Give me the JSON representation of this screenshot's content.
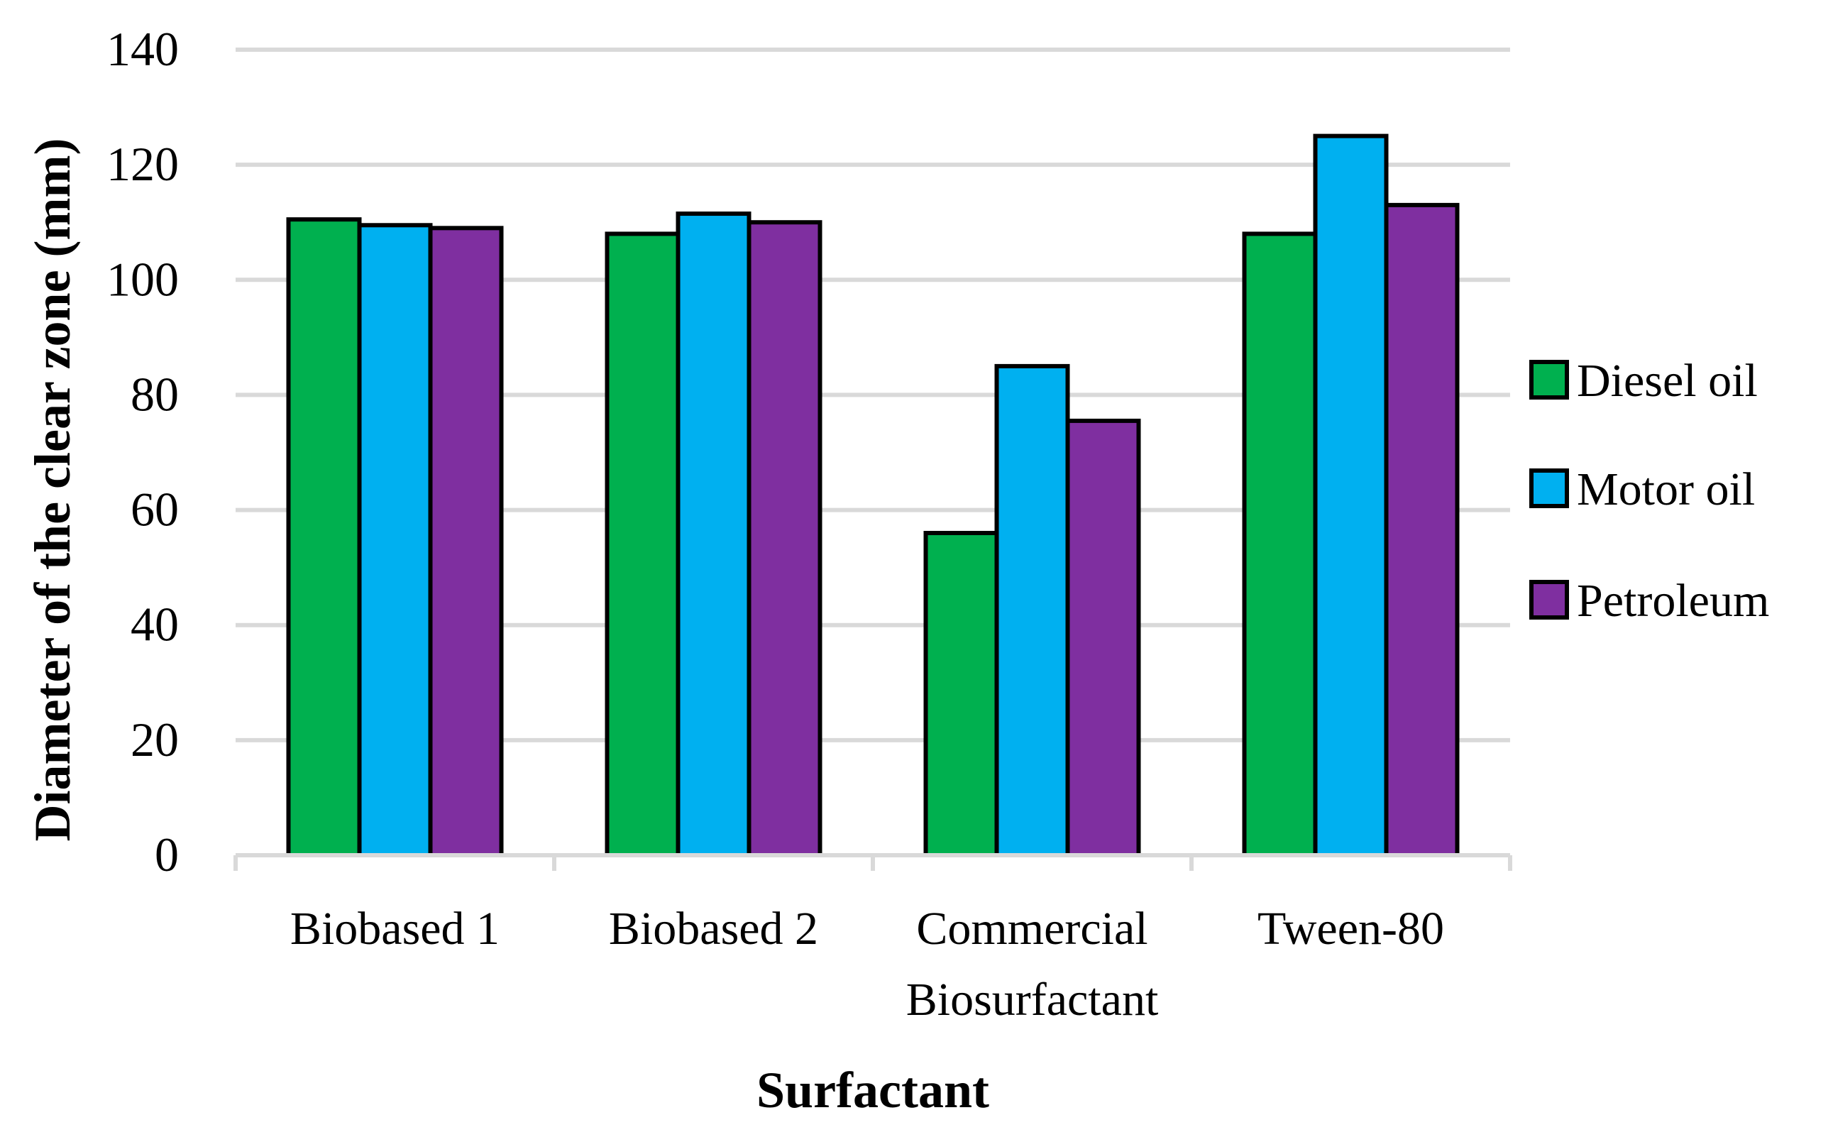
{
  "chart_data": {
    "type": "bar",
    "title": "",
    "xlabel": "Surfactant",
    "ylabel": "Diameter of the clear zone (mm)",
    "ylim": [
      0,
      140
    ],
    "yticks": [
      0,
      20,
      40,
      60,
      80,
      100,
      120,
      140
    ],
    "grid": true,
    "legend_position": "right",
    "categories": [
      [
        "Biobased 1"
      ],
      [
        "Biobased 2"
      ],
      [
        "Commercial",
        "Biosurfactant"
      ],
      [
        "Tween-80"
      ]
    ],
    "series": [
      {
        "name": "Diesel oil",
        "color": "#00b04f",
        "values": [
          110.5,
          108,
          56,
          108
        ]
      },
      {
        "name": "Motor oil",
        "color": "#00b0f0",
        "values": [
          109.5,
          111.5,
          85,
          125
        ]
      },
      {
        "name": "Petroleum",
        "color": "#7f2fa0",
        "values": [
          109,
          110,
          75.5,
          113
        ]
      }
    ]
  }
}
